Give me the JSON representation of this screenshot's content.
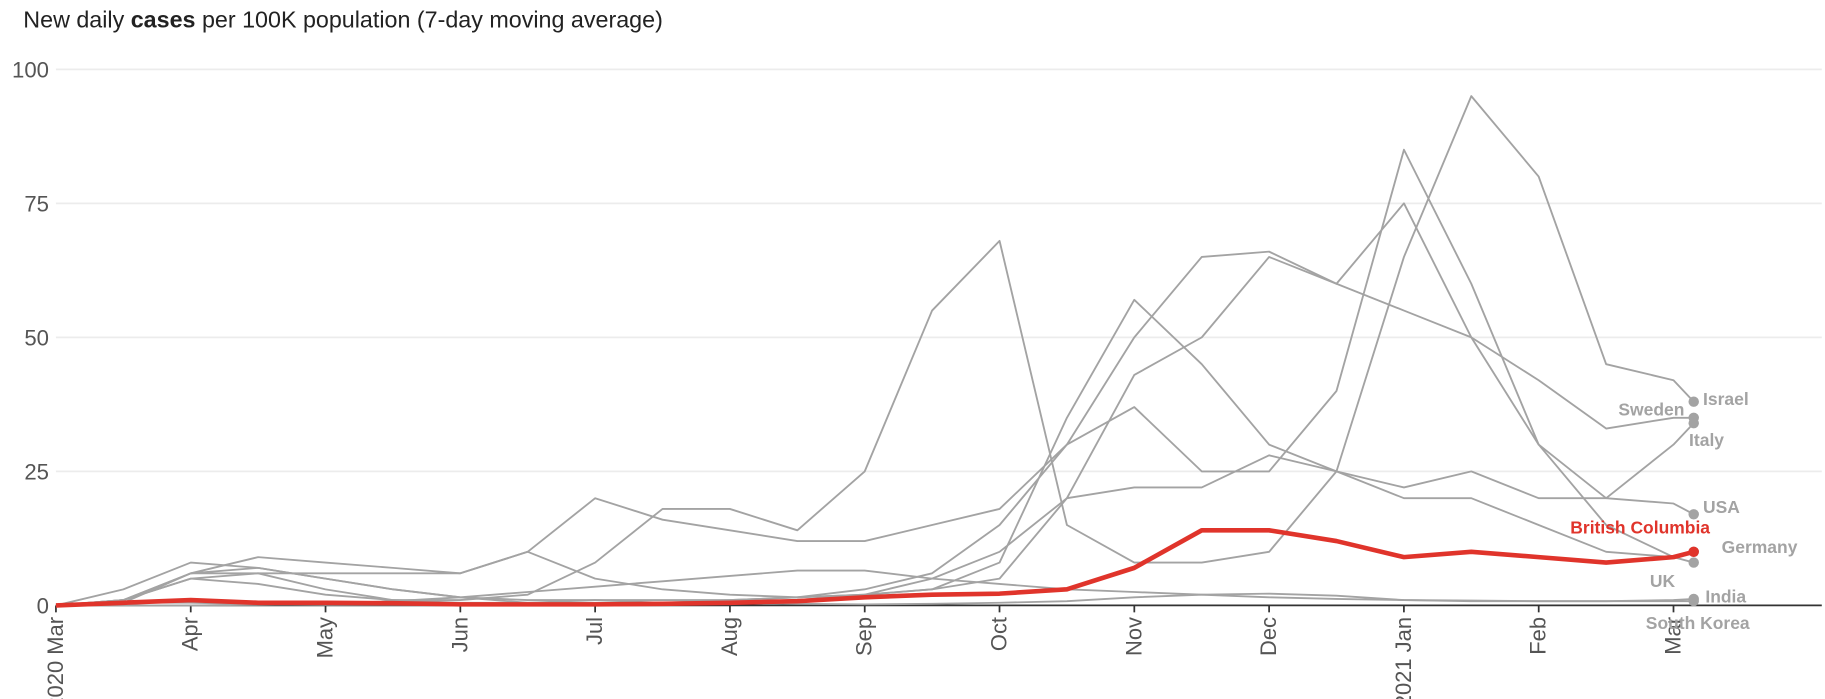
{
  "chart_data": {
    "type": "line",
    "title_parts": [
      "New daily ",
      "cases",
      " per 100K population (7-day moving average)"
    ],
    "x": [
      0,
      0.5,
      1,
      1.5,
      2,
      2.5,
      3,
      3.5,
      4,
      4.5,
      5,
      5.5,
      6,
      6.5,
      7,
      7.5,
      8,
      8.5,
      9,
      9.5,
      10,
      10.5,
      11,
      11.5,
      12,
      12.15
    ],
    "xlim": [
      0,
      13.1
    ],
    "xticks": [
      {
        "value": 0,
        "label": "2020 Mar"
      },
      {
        "value": 1,
        "label": "Apr"
      },
      {
        "value": 2,
        "label": "May"
      },
      {
        "value": 3,
        "label": "Jun"
      },
      {
        "value": 4,
        "label": "Jul"
      },
      {
        "value": 5,
        "label": "Aug"
      },
      {
        "value": 6,
        "label": "Sep"
      },
      {
        "value": 7,
        "label": "Oct"
      },
      {
        "value": 8,
        "label": "Nov"
      },
      {
        "value": 9,
        "label": "Dec"
      },
      {
        "value": 10,
        "label": "2021 Jan"
      },
      {
        "value": 11,
        "label": "Feb"
      },
      {
        "value": 12,
        "label": "Mar"
      }
    ],
    "ylim": [
      0,
      100
    ],
    "yticks": [
      0,
      25,
      50,
      75,
      100
    ],
    "grid": true,
    "series": [
      {
        "name": "Israel",
        "color": "#a3a3a3",
        "values": [
          0,
          1,
          5,
          4,
          2,
          1,
          1,
          2,
          8,
          18,
          18,
          14,
          25,
          55,
          68,
          15,
          8,
          8,
          10,
          25,
          65,
          95,
          80,
          45,
          42,
          38
        ]
      },
      {
        "name": "Sweden",
        "color": "#a3a3a3",
        "values": [
          0,
          1,
          5,
          6,
          6,
          6,
          6,
          10,
          5,
          3,
          2,
          1.5,
          2,
          3,
          5,
          20,
          43,
          50,
          65,
          60,
          55,
          50,
          42,
          33,
          35,
          35
        ]
      },
      {
        "name": "Italy",
        "color": "#a3a3a3",
        "values": [
          0,
          3,
          8,
          7,
          5,
          3,
          1.5,
          0.5,
          0.5,
          0.5,
          0.5,
          1,
          2,
          3,
          8,
          35,
          57,
          45,
          30,
          25,
          22,
          25,
          20,
          20,
          30,
          34
        ]
      },
      {
        "name": "USA",
        "color": "#a3a3a3",
        "values": [
          0,
          1,
          6,
          9,
          8,
          7,
          6,
          10,
          20,
          16,
          14,
          12,
          12,
          15,
          18,
          30,
          50,
          65,
          66,
          60,
          75,
          50,
          30,
          20,
          19,
          17
        ]
      },
      {
        "name": "Germany",
        "color": "#a3a3a3",
        "values": [
          0,
          1,
          6,
          6,
          3,
          1,
          0.5,
          0.5,
          1,
          1,
          1,
          1.5,
          2,
          5,
          10,
          20,
          22,
          22,
          28,
          25,
          20,
          20,
          15,
          10,
          9,
          10
        ]
      },
      {
        "name": "UK",
        "color": "#a3a3a3",
        "values": [
          0,
          0.5,
          6,
          7,
          5,
          3,
          1.5,
          1,
          1,
          0.5,
          1,
          1.5,
          3,
          6,
          15,
          30,
          37,
          25,
          25,
          40,
          85,
          60,
          30,
          15,
          9,
          8
        ]
      },
      {
        "name": "India",
        "color": "#a3a3a3",
        "values": [
          0,
          0,
          0,
          0.1,
          0.3,
          0.8,
          1.5,
          2.5,
          3.5,
          4.5,
          5.5,
          6.5,
          6.5,
          5,
          4,
          3,
          2.5,
          2,
          1.5,
          1.2,
          1,
          0.9,
          0.8,
          0.8,
          1,
          1.2
        ]
      },
      {
        "name": "South Korea",
        "color": "#a3a3a3",
        "values": [
          0,
          0.5,
          0.5,
          0.2,
          0.1,
          0.1,
          0.1,
          0.1,
          0.1,
          0.2,
          0.5,
          0.3,
          0.2,
          0.3,
          0.5,
          0.8,
          1.5,
          2,
          2.2,
          1.8,
          1,
          0.8,
          0.8,
          0.8,
          0.8,
          0.8
        ]
      },
      {
        "name": "British Columbia",
        "color": "#e0342b",
        "values": [
          0,
          0.5,
          1,
          0.5,
          0.5,
          0.4,
          0.2,
          0.2,
          0.2,
          0.3,
          0.5,
          0.8,
          1.5,
          2,
          2.2,
          3,
          7,
          14,
          14,
          12,
          9,
          10,
          9,
          8,
          9,
          10
        ]
      }
    ]
  }
}
